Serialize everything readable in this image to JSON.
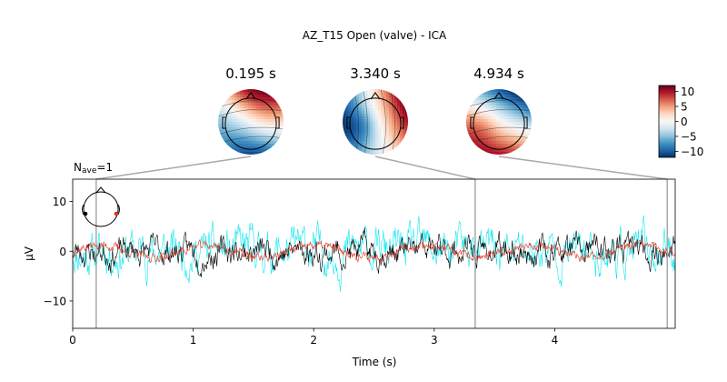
{
  "figure": {
    "suptitle": "AZ_T15 Open (valve) - ICA",
    "nave_prefix": "N",
    "nave_sub": "ave",
    "nave_value": "=1"
  },
  "topomaps": [
    {
      "time": 0.195,
      "label": "0.195 s",
      "pattern": "A"
    },
    {
      "time": 3.34,
      "label": "3.340 s",
      "pattern": "B"
    },
    {
      "time": 4.934,
      "label": "4.934 s",
      "pattern": "C"
    }
  ],
  "colorbar": {
    "colormap": "RdBu_r",
    "range": [
      -12,
      12
    ],
    "ticks": [
      "10",
      "5",
      "0",
      "−5",
      "−10"
    ],
    "tick_values": [
      10,
      5,
      0,
      -5,
      -10
    ]
  },
  "chart_data": {
    "type": "line",
    "xlabel": "Time (s)",
    "ylabel": "µV",
    "xlim": [
      0,
      5.0
    ],
    "ylim": [
      -15.5,
      14.5
    ],
    "x_ticks": [
      "0",
      "1",
      "2",
      "3",
      "4"
    ],
    "x_tick_values": [
      0,
      1,
      2,
      3,
      4
    ],
    "y_ticks": [
      "10",
      "0",
      "−10"
    ],
    "y_tick_values": [
      10,
      0,
      -10
    ],
    "vlines": [
      0.195,
      3.34,
      4.934
    ],
    "series": [
      {
        "color": "#00e5ee",
        "amplitude": 6.0,
        "seed": 11
      },
      {
        "color": "#000000",
        "amplitude": 4.0,
        "seed": 23
      },
      {
        "color": "#e03020",
        "amplitude": 1.3,
        "seed": 37
      }
    ]
  },
  "colors": {
    "vline": "#a9a9a9",
    "sensor_left": "#000000",
    "sensor_right": "#e03020"
  }
}
